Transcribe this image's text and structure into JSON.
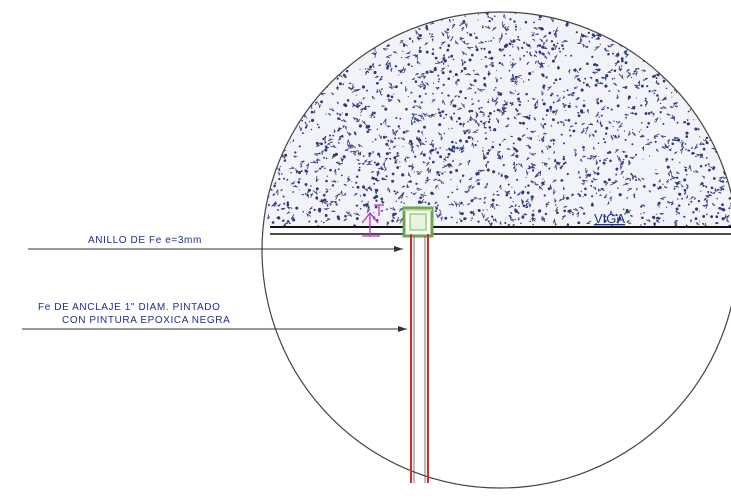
{
  "labels": {
    "beam": "VIGA",
    "ring": "ANILLO DE Fe e=3mm",
    "anchor_line1": "Fe DE ANCLAJE 1\" DIAM. PINTADO",
    "anchor_line2": "CON PINTURA EPOXICA NEGRA"
  },
  "colors": {
    "ink": "#1c2f8a",
    "concrete_dots": "#2c3a7a",
    "anchor_bar": "#d42a2a",
    "ring_plate": "#6aa84f",
    "detail_mark": "#c030c0"
  }
}
